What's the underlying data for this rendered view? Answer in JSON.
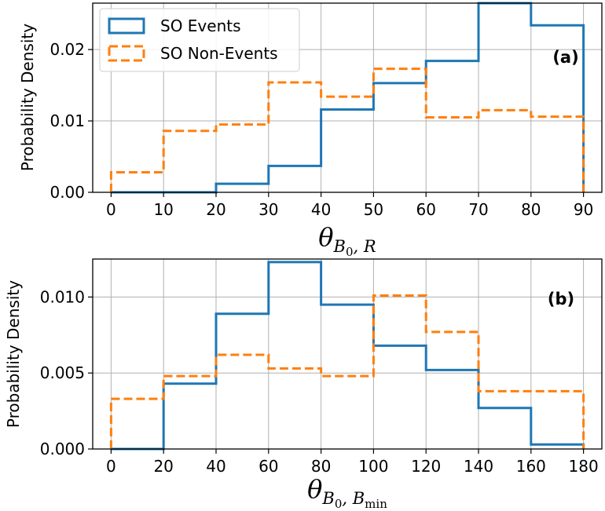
{
  "chart_data": [
    {
      "type": "histogram",
      "panel_label": "(a)",
      "bin_edges": [
        0,
        10,
        20,
        30,
        40,
        50,
        60,
        70,
        80,
        90
      ],
      "xticks": [
        0,
        10,
        20,
        30,
        40,
        50,
        60,
        70,
        80,
        90
      ],
      "xlim": [
        -3.5,
        93.5
      ],
      "ylim": [
        0,
        0.0265
      ],
      "yticks": [
        "0.00",
        "0.01",
        "0.02"
      ],
      "ytick_values": [
        0,
        0.01,
        0.02
      ],
      "ylabel": "Probability Density",
      "xlabel": {
        "base": "θ",
        "sub": "B",
        "subsub": "0",
        "rest": ", R"
      },
      "grid": true,
      "legend": {
        "placement": "upper-left",
        "entries": [
          "SO Events",
          "SO Non-Events"
        ]
      },
      "series": [
        {
          "name": "SO Events",
          "color": "#1f77b4",
          "style": "solid",
          "values": [
            0.0,
            0.0,
            0.0012,
            0.0037,
            0.0116,
            0.0153,
            0.0184,
            0.0265,
            0.0234
          ]
        },
        {
          "name": "SO Non-Events",
          "color": "#ff7f0e",
          "style": "dashed",
          "values": [
            0.0028,
            0.0086,
            0.0095,
            0.0154,
            0.0134,
            0.0173,
            0.0105,
            0.0115,
            0.0106
          ]
        }
      ]
    },
    {
      "type": "histogram",
      "panel_label": "(b)",
      "bin_edges": [
        0,
        20,
        40,
        60,
        80,
        100,
        120,
        140,
        160,
        180
      ],
      "xticks": [
        0,
        20,
        40,
        60,
        80,
        100,
        120,
        140,
        160,
        180
      ],
      "xlim": [
        -7,
        187
      ],
      "ylim": [
        0,
        0.0125
      ],
      "yticks": [
        "0.000",
        "0.005",
        "0.010"
      ],
      "ytick_values": [
        0,
        0.005,
        0.01
      ],
      "ylabel": "Probability Density",
      "xlabel": {
        "base": "θ",
        "sub": "B",
        "subsub": "0",
        "rest": ", B",
        "restsub": "min"
      },
      "grid": true,
      "series": [
        {
          "name": "SO Events",
          "color": "#1f77b4",
          "style": "solid",
          "values": [
            0.0,
            0.0043,
            0.0089,
            0.0123,
            0.0095,
            0.0068,
            0.0052,
            0.0027,
            0.0003
          ]
        },
        {
          "name": "SO Non-Events",
          "color": "#ff7f0e",
          "style": "dashed",
          "values": [
            0.0033,
            0.0048,
            0.0062,
            0.0053,
            0.0048,
            0.0101,
            0.0077,
            0.0038,
            0.0038
          ]
        }
      ]
    }
  ]
}
